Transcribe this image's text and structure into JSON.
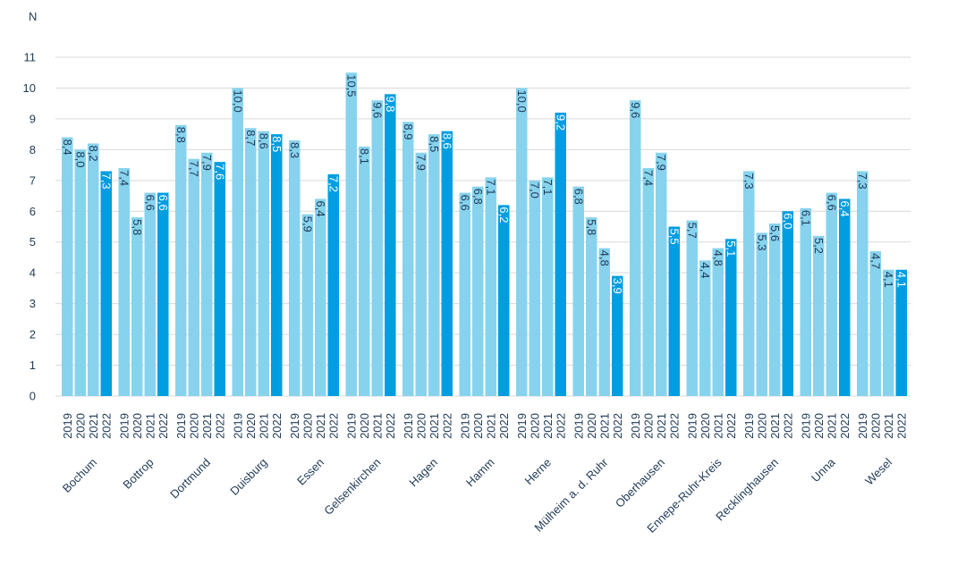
{
  "chart_data": {
    "type": "bar",
    "ylabel": "N",
    "ylim": [
      0,
      11
    ],
    "yticks": [
      "0",
      "1",
      "2",
      "3",
      "4",
      "5",
      "6",
      "7",
      "8",
      "9",
      "10",
      "11"
    ],
    "grid": true,
    "years": [
      "2019",
      "2020",
      "2021",
      "2022"
    ],
    "categories": [
      "Bochum",
      "Bottrop",
      "Dortmund",
      "Duisburg",
      "Essen",
      "Gelsenkirchen",
      "Hagen",
      "Hamm",
      "Herne",
      "Mülheim a. d. Ruhr",
      "Oberhausen",
      "Ennepe-Ruhr-Kreis",
      "Recklinghausen",
      "Unna",
      "Wesel"
    ],
    "series": [
      {
        "name": "2019",
        "values": [
          8.4,
          7.4,
          8.8,
          10.0,
          8.3,
          10.5,
          8.9,
          6.6,
          10.0,
          6.8,
          9.6,
          5.7,
          7.3,
          6.1,
          7.3
        ]
      },
      {
        "name": "2020",
        "values": [
          8.0,
          5.8,
          7.7,
          8.7,
          5.9,
          8.1,
          7.9,
          6.8,
          7.0,
          5.8,
          7.4,
          4.4,
          5.3,
          5.2,
          4.7
        ]
      },
      {
        "name": "2021",
        "values": [
          8.2,
          6.6,
          7.9,
          8.6,
          6.4,
          9.6,
          8.5,
          7.1,
          7.1,
          4.8,
          7.9,
          4.8,
          5.6,
          6.6,
          4.1
        ]
      },
      {
        "name": "2022",
        "values": [
          7.3,
          6.6,
          7.6,
          8.5,
          7.2,
          9.8,
          8.6,
          6.2,
          9.2,
          3.9,
          5.5,
          5.1,
          6.0,
          6.4,
          4.1
        ]
      }
    ],
    "value_labels": [
      [
        "8,4",
        "8,0",
        "8,2",
        "7,3"
      ],
      [
        "7,4",
        "5,8",
        "6,6",
        "6,6"
      ],
      [
        "8,8",
        "7,7",
        "7,9",
        "7,6"
      ],
      [
        "10,0",
        "8,7",
        "8,6",
        "8,5"
      ],
      [
        "8,3",
        "5,9",
        "6,4",
        "7,2"
      ],
      [
        "10,5",
        "8,1",
        "9,6",
        "9,8"
      ],
      [
        "8,9",
        "7,9",
        "8,5",
        "8,6"
      ],
      [
        "6,6",
        "6,8",
        "7,1",
        "6,2"
      ],
      [
        "10,0",
        "7,0",
        "7,1",
        "9,2"
      ],
      [
        "6,8",
        "5,8",
        "4,8",
        "3,9"
      ],
      [
        "9,6",
        "7,4",
        "7,9",
        "5,5"
      ],
      [
        "5,7",
        "4,4",
        "4,8",
        "5,1"
      ],
      [
        "7,3",
        "5,3",
        "5,6",
        "6,0"
      ],
      [
        "6,1",
        "5,2",
        "6,6",
        "6,4"
      ],
      [
        "7,3",
        "4,7",
        "4,1",
        "4,1"
      ]
    ],
    "colors": {
      "past": "#87d3ee",
      "current": "#009ee0",
      "grid": "#d9d9d9",
      "text": "#1f3a56"
    }
  }
}
